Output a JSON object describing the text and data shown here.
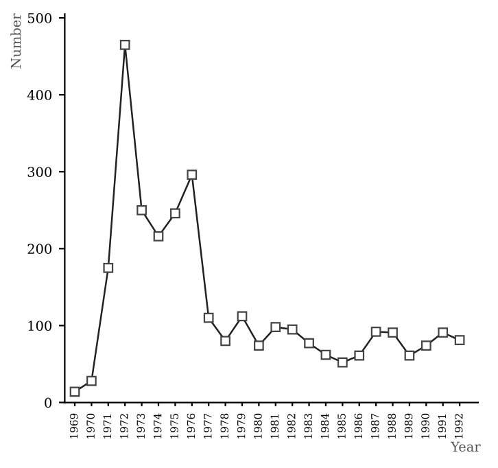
{
  "chart_data": {
    "type": "line",
    "xlabel": "Year",
    "ylabel": "Number",
    "categories": [
      "1969",
      "1970",
      "1971",
      "1972",
      "1973",
      "1974",
      "1975",
      "1976",
      "1977",
      "1978",
      "1979",
      "1980",
      "1981",
      "1982",
      "1983",
      "1984",
      "1985",
      "1986",
      "1987",
      "1988",
      "1989",
      "1990",
      "1991",
      "1992"
    ],
    "series": [
      {
        "color": "#222222",
        "values": [
          14,
          28,
          175,
          465,
          250,
          216,
          246,
          296,
          110,
          80,
          112,
          74,
          98,
          95,
          77,
          62,
          52,
          61,
          92,
          91,
          61,
          74,
          91,
          81
        ]
      }
    ],
    "ylim": [
      0,
      505
    ],
    "yticks": [
      0,
      100,
      200,
      300,
      400,
      500
    ],
    "grid": false,
    "legend": false,
    "marker": "square",
    "line_style": "solid"
  }
}
